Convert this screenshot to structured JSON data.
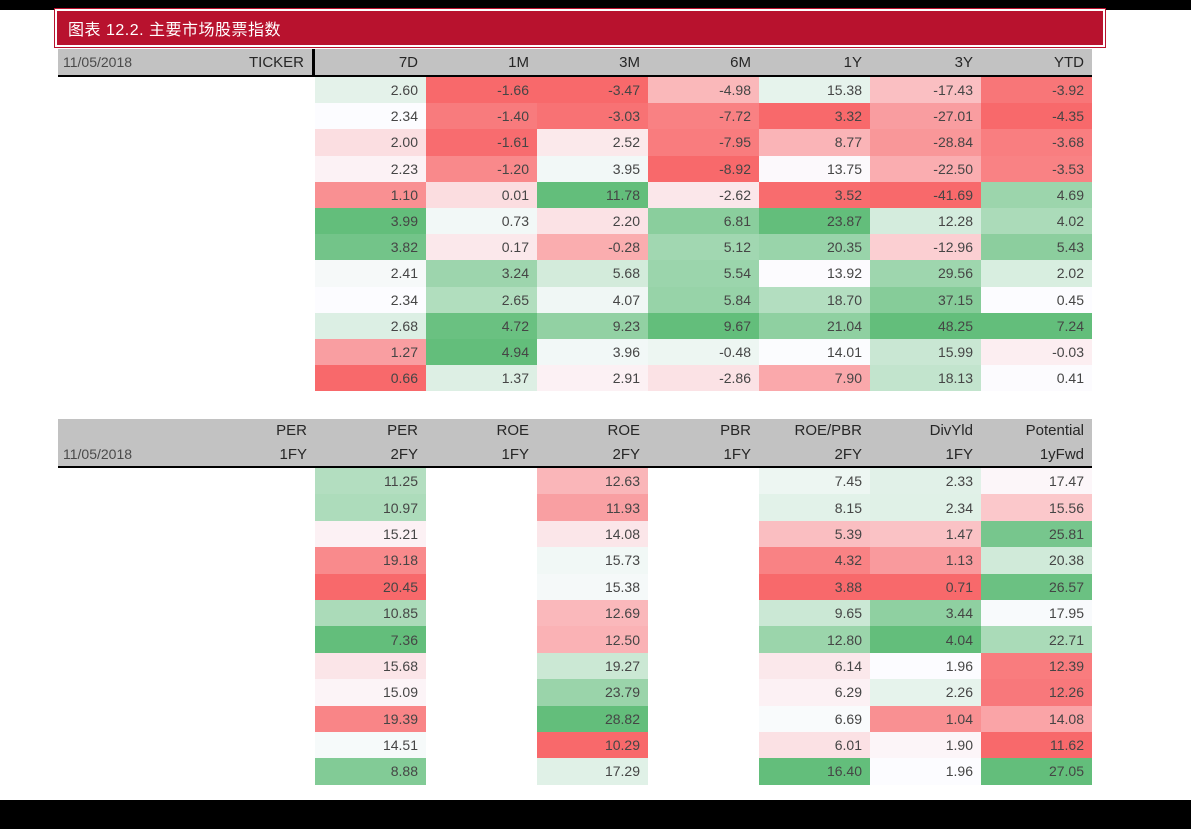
{
  "title_banner": {
    "text": "图表 12.2. 主要市场股票指数"
  },
  "colors": {
    "banner_bg": "#B8122E",
    "banner_border": "#FFFFFF",
    "banner_text": "#FFFFFF",
    "header_bg": "#C2C2C2",
    "header_text": "#262626",
    "date_text": "#4A4A4A",
    "cell_text": "#454545",
    "header_underline": "#000000",
    "column_divider": "#000000",
    "page_bg": "#FFFFFF",
    "edge_bars": "#000000",
    "heat_min": "#F8696B",
    "heat_mid": "#FCFCFF",
    "heat_max": "#63BE7B"
  },
  "chart_data": [
    {
      "type": "table",
      "title": "主要市场股票指数 price performance (%)",
      "date_label": "11/05/2018",
      "corner_header": "TICKER",
      "rows": 12,
      "columns": [
        {
          "label": "7D",
          "values": [
            2.6,
            2.34,
            2.0,
            2.23,
            1.1,
            3.99,
            3.82,
            2.41,
            2.34,
            2.68,
            1.27,
            0.66
          ]
        },
        {
          "label": "1M",
          "values": [
            -1.66,
            -1.4,
            -1.61,
            -1.2,
            0.01,
            0.73,
            0.17,
            3.24,
            2.65,
            4.72,
            4.94,
            1.37
          ]
        },
        {
          "label": "3M",
          "values": [
            -3.47,
            -3.03,
            2.52,
            3.95,
            11.78,
            2.2,
            -0.28,
            5.68,
            4.07,
            9.23,
            3.96,
            2.91
          ]
        },
        {
          "label": "6M",
          "values": [
            -4.98,
            -7.72,
            -7.95,
            -8.92,
            -2.62,
            6.81,
            5.12,
            5.54,
            5.84,
            9.67,
            -0.48,
            -2.86
          ]
        },
        {
          "label": "1Y",
          "values": [
            15.38,
            3.32,
            8.77,
            13.75,
            3.52,
            23.87,
            20.35,
            13.92,
            18.7,
            21.04,
            14.01,
            7.9
          ]
        },
        {
          "label": "3Y",
          "values": [
            -17.43,
            -27.01,
            -28.84,
            -22.5,
            -41.69,
            12.28,
            -12.96,
            29.56,
            37.15,
            48.25,
            15.99,
            18.13
          ]
        },
        {
          "label": "YTD",
          "values": [
            -3.92,
            -4.35,
            -3.68,
            -3.53,
            4.69,
            4.02,
            5.43,
            2.02,
            0.45,
            7.24,
            -0.03,
            0.41
          ]
        }
      ]
    },
    {
      "type": "table",
      "title": "主要市场股票指数 valuation metrics",
      "date_label": "11/05/2018",
      "rows": 12,
      "columns": [
        {
          "label": "PER",
          "sublabel": "1FY",
          "values": null
        },
        {
          "label": "PER",
          "sublabel": "2FY",
          "lower_is_better": true,
          "values": [
            11.25,
            10.97,
            15.21,
            19.18,
            20.45,
            10.85,
            7.36,
            15.68,
            15.09,
            19.39,
            14.51,
            8.88
          ]
        },
        {
          "label": "ROE",
          "sublabel": "1FY",
          "values": null
        },
        {
          "label": "ROE",
          "sublabel": "2FY",
          "values": [
            12.63,
            11.93,
            14.08,
            15.73,
            15.38,
            12.69,
            12.5,
            19.27,
            23.79,
            28.82,
            10.29,
            17.29
          ]
        },
        {
          "label": "PBR",
          "sublabel": "1FY",
          "values": null
        },
        {
          "label": "ROE/PBR",
          "sublabel": "2FY",
          "values": [
            7.45,
            8.15,
            5.39,
            4.32,
            3.88,
            9.65,
            12.8,
            6.14,
            6.29,
            6.69,
            6.01,
            16.4
          ]
        },
        {
          "label": "DivYld",
          "sublabel": "1FY",
          "values": [
            2.33,
            2.34,
            1.47,
            1.13,
            0.71,
            3.44,
            4.04,
            1.96,
            2.26,
            1.04,
            1.9,
            1.96
          ]
        },
        {
          "label": "Potential",
          "sublabel": "1yFwd",
          "values": [
            17.47,
            15.56,
            25.81,
            20.38,
            26.57,
            17.95,
            22.71,
            12.39,
            12.26,
            14.08,
            11.62,
            27.05
          ]
        }
      ]
    }
  ]
}
